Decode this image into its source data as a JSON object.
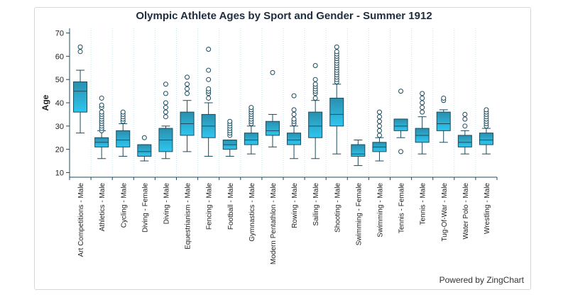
{
  "chart_data": {
    "type": "boxplot",
    "title": "Olympic Athlete Ages by Sport and Gender - Summer 1912",
    "xlabel": "",
    "ylabel": "Age",
    "ylim": [
      8,
      72
    ],
    "yticks": [
      10,
      20,
      30,
      40,
      50,
      60,
      70
    ],
    "grid": "vertical dotted",
    "colors": {
      "box_top": "#2a8fae",
      "box_bottom": "#2ec6ef",
      "line": "#1a4b5e",
      "axis": "#1a4b5e",
      "grid": "#bfe3ee"
    },
    "categories": [
      "Art Competitions - Male",
      "Athletics - Male",
      "Cycling - Male",
      "Diving - Female",
      "Diving - Male",
      "Equestrianism - Male",
      "Fencing - Male",
      "Football - Male",
      "Gymnastics - Male",
      "Modern Pentathlon - Male",
      "Rowing - Male",
      "Sailing - Male",
      "Shooting - Male",
      "Swimming - Female",
      "Swimming - Male",
      "Tennis - Female",
      "Tennis - Male",
      "Tug-Of-War - Male",
      "Water Polo - Male",
      "Wrestling - Male"
    ],
    "boxes": [
      {
        "min": 27,
        "q1": 36,
        "median": 45,
        "q3": 49,
        "max": 54,
        "outliers": [
          62,
          64
        ]
      },
      {
        "min": 16,
        "q1": 21,
        "median": 23,
        "q3": 25,
        "max": 28,
        "outliers": [
          28,
          29,
          30,
          31,
          32,
          33,
          34,
          35,
          36,
          38,
          39,
          42
        ]
      },
      {
        "min": 17,
        "q1": 21,
        "median": 24,
        "q3": 28,
        "max": 31,
        "outliers": [
          32,
          33,
          34,
          35,
          36
        ]
      },
      {
        "min": 15,
        "q1": 17,
        "median": 19,
        "q3": 22,
        "max": 22,
        "outliers": [
          25
        ]
      },
      {
        "min": 16,
        "q1": 19,
        "median": 24,
        "q3": 29,
        "max": 30,
        "outliers": [
          34,
          36,
          38,
          40,
          44,
          48
        ]
      },
      {
        "min": 19,
        "q1": 26,
        "median": 31,
        "q3": 36,
        "max": 41,
        "outliers": [
          44,
          46,
          48,
          51
        ]
      },
      {
        "min": 17,
        "q1": 25,
        "median": 30,
        "q3": 35,
        "max": 40,
        "outliers": [
          42,
          44,
          45,
          46,
          50,
          54,
          63
        ]
      },
      {
        "min": 17,
        "q1": 20,
        "median": 22,
        "q3": 24,
        "max": 24,
        "outliers": [
          26,
          27,
          28,
          29,
          30,
          31,
          32
        ]
      },
      {
        "min": 18,
        "q1": 22,
        "median": 24,
        "q3": 27,
        "max": 30,
        "outliers": [
          31,
          32,
          33,
          34,
          35,
          36,
          37,
          38
        ]
      },
      {
        "min": 21,
        "q1": 26,
        "median": 28,
        "q3": 32,
        "max": 35,
        "outliers": [
          53
        ]
      },
      {
        "min": 16,
        "q1": 22,
        "median": 24,
        "q3": 27,
        "max": 30,
        "outliers": [
          31,
          32,
          33,
          35,
          37,
          43
        ]
      },
      {
        "min": 16,
        "q1": 25,
        "median": 30,
        "q3": 36,
        "max": 41,
        "outliers": [
          42,
          44,
          45,
          46,
          47,
          48,
          50,
          56
        ]
      },
      {
        "min": 18,
        "q1": 30,
        "median": 35,
        "q3": 42,
        "max": 48,
        "outliers": [
          49,
          50,
          51,
          52,
          53,
          54,
          55,
          56,
          57,
          58,
          59,
          60,
          61,
          62,
          64
        ]
      },
      {
        "min": 13,
        "q1": 17,
        "median": 18,
        "q3": 22,
        "max": 24,
        "outliers": []
      },
      {
        "min": 15,
        "q1": 19,
        "median": 21,
        "q3": 23,
        "max": 25,
        "outliers": [
          26,
          28,
          30,
          32,
          34,
          36
        ]
      },
      {
        "min": 25,
        "q1": 28,
        "median": 30,
        "q3": 33,
        "max": 33,
        "outliers": [
          19,
          45
        ]
      },
      {
        "min": 18,
        "q1": 23,
        "median": 26,
        "q3": 29,
        "max": 34,
        "outliers": [
          36,
          38,
          40,
          42,
          44
        ]
      },
      {
        "min": 23,
        "q1": 28,
        "median": 31,
        "q3": 36,
        "max": 37,
        "outliers": [
          41,
          42
        ]
      },
      {
        "min": 18,
        "q1": 21,
        "median": 23,
        "q3": 26,
        "max": 28,
        "outliers": [
          30,
          33,
          35
        ]
      },
      {
        "min": 18,
        "q1": 22,
        "median": 24,
        "q3": 27,
        "max": 29,
        "outliers": [
          30,
          31,
          32,
          33,
          34,
          35,
          36,
          37
        ]
      }
    ]
  },
  "footer": {
    "powered_by": "Powered by ZingChart"
  }
}
